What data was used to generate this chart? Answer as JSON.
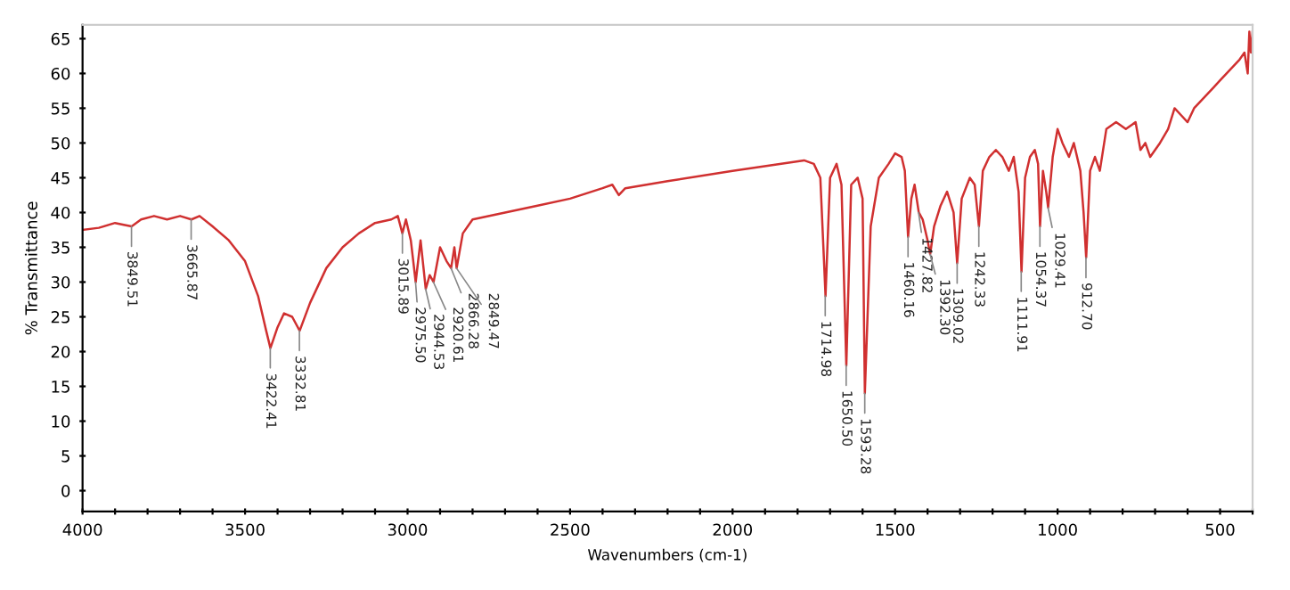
{
  "chart_data": {
    "type": "line",
    "xlabel": "Wavenumbers (cm-1)",
    "ylabel": "% Transmittance",
    "xlim": [
      4000,
      400
    ],
    "ylim": [
      -3,
      67
    ],
    "xticks": [
      4000,
      {
        "value": 3900,
        "label": null
      },
      {
        "value": 3800,
        "label": null
      },
      {
        "value": 3700,
        "label": null
      },
      {
        "value": 3600,
        "label": null
      },
      3500,
      {
        "value": 3400,
        "label": null
      },
      {
        "value": 3300,
        "label": null
      },
      {
        "value": 3200,
        "label": null
      },
      {
        "value": 3100,
        "label": null
      },
      3000,
      {
        "value": 2900,
        "label": null
      },
      {
        "value": 2800,
        "label": null
      },
      {
        "value": 2700,
        "label": null
      },
      {
        "value": 2600,
        "label": null
      },
      2500,
      {
        "value": 2400,
        "label": null
      },
      {
        "value": 2300,
        "label": null
      },
      {
        "value": 2200,
        "label": null
      },
      {
        "value": 2100,
        "label": null
      },
      2000,
      {
        "value": 1900,
        "label": null
      },
      {
        "value": 1800,
        "label": null
      },
      {
        "value": 1700,
        "label": null
      },
      {
        "value": 1600,
        "label": null
      },
      1500,
      {
        "value": 1400,
        "label": null
      },
      {
        "value": 1300,
        "label": null
      },
      {
        "value": 1200,
        "label": null
      },
      {
        "value": 1100,
        "label": null
      },
      1000,
      {
        "value": 900,
        "label": null
      },
      {
        "value": 800,
        "label": null
      },
      {
        "value": 700,
        "label": null
      },
      {
        "value": 600,
        "label": null
      },
      500,
      {
        "value": 400,
        "label": null
      }
    ],
    "yticks": [
      0,
      5,
      10,
      15,
      20,
      25,
      30,
      35,
      40,
      45,
      50,
      55,
      60,
      65
    ],
    "grid": false,
    "legend": false,
    "marker": "none",
    "line_style": "solid",
    "series": [
      {
        "color": "#d03030",
        "x": [
          4000,
          3950,
          3900,
          3870,
          3849,
          3820,
          3780,
          3740,
          3700,
          3665,
          3640,
          3600,
          3550,
          3500,
          3460,
          3435,
          3422,
          3400,
          3380,
          3355,
          3332,
          3300,
          3250,
          3200,
          3150,
          3100,
          3050,
          3030,
          3016,
          3005,
          2990,
          2975,
          2960,
          2944,
          2932,
          2920,
          2900,
          2880,
          2866,
          2856,
          2849,
          2830,
          2800,
          2700,
          2600,
          2500,
          2400,
          2370,
          2350,
          2330,
          2200,
          2000,
          1850,
          1780,
          1750,
          1730,
          1714,
          1700,
          1680,
          1665,
          1650,
          1635,
          1615,
          1600,
          1593,
          1575,
          1550,
          1520,
          1500,
          1480,
          1470,
          1460,
          1450,
          1440,
          1427,
          1415,
          1400,
          1392,
          1380,
          1360,
          1340,
          1320,
          1309,
          1295,
          1270,
          1255,
          1242,
          1230,
          1210,
          1190,
          1170,
          1150,
          1135,
          1120,
          1111,
          1100,
          1085,
          1070,
          1060,
          1054,
          1045,
          1035,
          1029,
          1015,
          1000,
          985,
          965,
          950,
          930,
          920,
          912,
          900,
          885,
          870,
          850,
          820,
          790,
          760,
          745,
          730,
          715,
          700,
          685,
          660,
          640,
          620,
          600,
          580,
          560,
          540,
          520,
          500,
          480,
          460,
          440,
          425,
          415,
          410,
          405,
          400
        ],
        "values": [
          37.5,
          37.8,
          38.5,
          38.2,
          38,
          39,
          39.5,
          39,
          39.5,
          39,
          39.5,
          38,
          36,
          33,
          28,
          23,
          20.5,
          23.5,
          25.5,
          25,
          23,
          27,
          32,
          35,
          37,
          38.5,
          39,
          39.5,
          37,
          39,
          36,
          30,
          36,
          29,
          31,
          30,
          35,
          33,
          32,
          35,
          32,
          37,
          39,
          40,
          41,
          42,
          43.5,
          44,
          42.5,
          43.5,
          44.5,
          46,
          47,
          47.5,
          47,
          45,
          28,
          45,
          47,
          44,
          18,
          44,
          45,
          42,
          14,
          38,
          45,
          47,
          48.5,
          48,
          46,
          36.5,
          42,
          44,
          40,
          39,
          36,
          34,
          38,
          41,
          43,
          40,
          32.7,
          42,
          45,
          44,
          38,
          46,
          48,
          49,
          48,
          46,
          48,
          43,
          31.5,
          45,
          48,
          49,
          47,
          38,
          46,
          43,
          40.7,
          48,
          52,
          50,
          48,
          50,
          46,
          40,
          33.5,
          46,
          48,
          46,
          52,
          53,
          52,
          53,
          49,
          50,
          48,
          49,
          50,
          52,
          55,
          54,
          53,
          55,
          56,
          57,
          58,
          59,
          60,
          61,
          62,
          63,
          60,
          66,
          63,
          66
        ]
      }
    ],
    "annotations": [
      {
        "text": "3849.51",
        "x": 3849.51,
        "y": 38
      },
      {
        "text": "3665.87",
        "x": 3665.87,
        "y": 39
      },
      {
        "text": "3422.41",
        "x": 3422.41,
        "y": 20.5
      },
      {
        "text": "3332.81",
        "x": 3332.81,
        "y": 23
      },
      {
        "text": "3015.89",
        "x": 3015.89,
        "y": 37
      },
      {
        "text": "2975.50",
        "x": 2975.5,
        "y": 30
      },
      {
        "text": "2944.53",
        "x": 2944.53,
        "y": 29
      },
      {
        "text": "2920.61",
        "x": 2920.61,
        "y": 30
      },
      {
        "text": "2866.28",
        "x": 2866.28,
        "y": 32
      },
      {
        "text": "2849.47",
        "x": 2849.47,
        "y": 32
      },
      {
        "text": "1714.98",
        "x": 1714.98,
        "y": 28
      },
      {
        "text": "1650.50",
        "x": 1650.5,
        "y": 18
      },
      {
        "text": "1593.28",
        "x": 1593.28,
        "y": 14
      },
      {
        "text": "1460.16",
        "x": 1460.16,
        "y": 36.5
      },
      {
        "text": "1427.82",
        "x": 1427.82,
        "y": 40
      },
      {
        "text": "1392.30",
        "x": 1392.3,
        "y": 34
      },
      {
        "text": "1309.02",
        "x": 1309.02,
        "y": 32.7
      },
      {
        "text": "1242.33",
        "x": 1242.33,
        "y": 38
      },
      {
        "text": "1111.91",
        "x": 1111.91,
        "y": 31.5
      },
      {
        "text": "1054.37",
        "x": 1054.37,
        "y": 38
      },
      {
        "text": "1029.41",
        "x": 1029.41,
        "y": 40.7
      },
      {
        "text": "912.70",
        "x": 912.7,
        "y": 33.5
      }
    ]
  }
}
